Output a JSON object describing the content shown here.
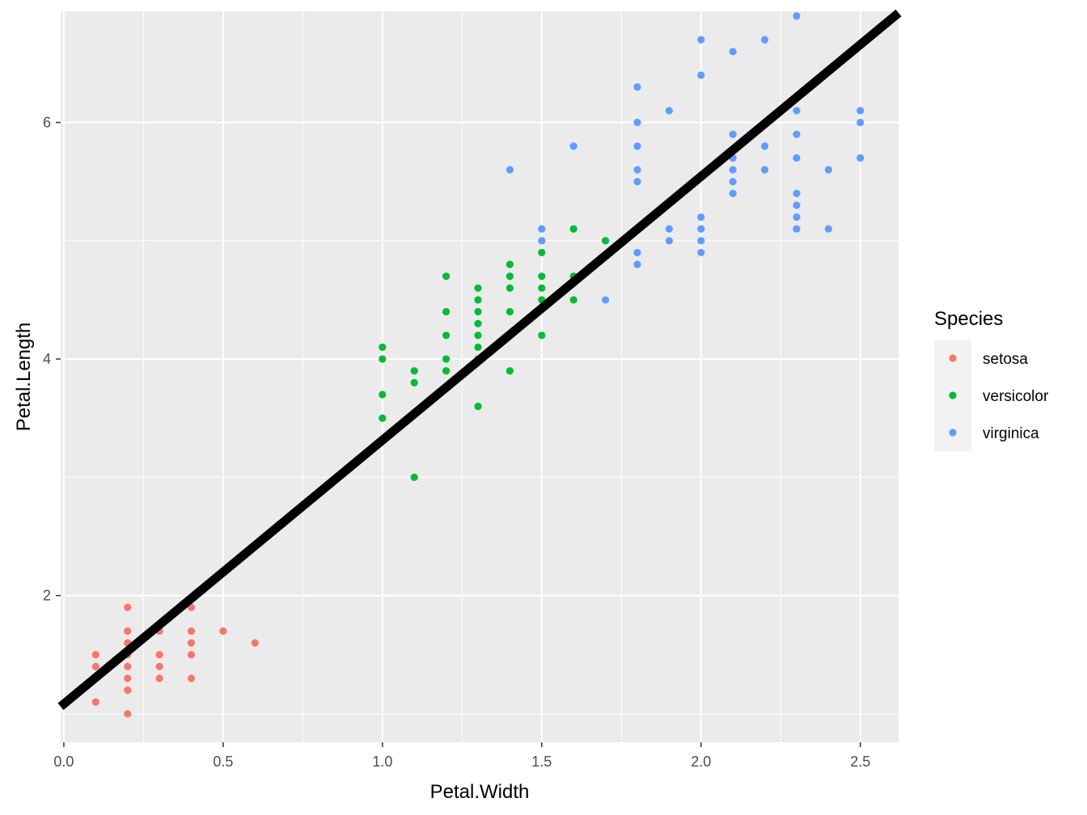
{
  "chart_data": {
    "type": "scatter",
    "xlabel": "Petal.Width",
    "ylabel": "Petal.Length",
    "xlim": [
      -0.01,
      2.62
    ],
    "ylim": [
      0.76,
      6.94
    ],
    "x_ticks": [
      0.0,
      0.5,
      1.0,
      1.5,
      2.0,
      2.5
    ],
    "x_tick_labels": [
      "0.0",
      "0.5",
      "1.0",
      "1.5",
      "2.0",
      "2.5"
    ],
    "y_ticks": [
      2,
      4,
      6
    ],
    "y_tick_labels": [
      "2",
      "4",
      "6"
    ],
    "grid": true,
    "background": "#EBEBEB",
    "legend": {
      "title": "Species",
      "placement": "right",
      "entries": [
        "setosa",
        "versicolor",
        "virginica"
      ]
    },
    "series": [
      {
        "name": "setosa",
        "color": "#F8766D",
        "points": [
          [
            0.1,
            1.1
          ],
          [
            0.1,
            1.4
          ],
          [
            0.1,
            1.5
          ],
          [
            0.2,
            1.0
          ],
          [
            0.2,
            1.2
          ],
          [
            0.2,
            1.3
          ],
          [
            0.2,
            1.4
          ],
          [
            0.2,
            1.5
          ],
          [
            0.2,
            1.6
          ],
          [
            0.2,
            1.7
          ],
          [
            0.2,
            1.9
          ],
          [
            0.3,
            1.3
          ],
          [
            0.3,
            1.4
          ],
          [
            0.3,
            1.5
          ],
          [
            0.3,
            1.7
          ],
          [
            0.4,
            1.3
          ],
          [
            0.4,
            1.5
          ],
          [
            0.4,
            1.6
          ],
          [
            0.4,
            1.7
          ],
          [
            0.4,
            1.9
          ],
          [
            0.5,
            1.7
          ],
          [
            0.6,
            1.6
          ]
        ]
      },
      {
        "name": "versicolor",
        "color": "#00BA38",
        "points": [
          [
            1.0,
            3.5
          ],
          [
            1.0,
            3.7
          ],
          [
            1.0,
            4.0
          ],
          [
            1.0,
            4.1
          ],
          [
            1.1,
            3.0
          ],
          [
            1.1,
            3.8
          ],
          [
            1.1,
            3.9
          ],
          [
            1.2,
            3.9
          ],
          [
            1.2,
            4.0
          ],
          [
            1.2,
            4.2
          ],
          [
            1.2,
            4.4
          ],
          [
            1.2,
            4.7
          ],
          [
            1.3,
            3.6
          ],
          [
            1.3,
            4.0
          ],
          [
            1.3,
            4.1
          ],
          [
            1.3,
            4.2
          ],
          [
            1.3,
            4.3
          ],
          [
            1.3,
            4.4
          ],
          [
            1.3,
            4.5
          ],
          [
            1.3,
            4.6
          ],
          [
            1.4,
            3.9
          ],
          [
            1.4,
            4.4
          ],
          [
            1.4,
            4.6
          ],
          [
            1.4,
            4.7
          ],
          [
            1.4,
            4.8
          ],
          [
            1.5,
            4.2
          ],
          [
            1.5,
            4.5
          ],
          [
            1.5,
            4.6
          ],
          [
            1.5,
            4.7
          ],
          [
            1.5,
            4.9
          ],
          [
            1.6,
            4.5
          ],
          [
            1.6,
            4.7
          ],
          [
            1.6,
            5.1
          ],
          [
            1.7,
            5.0
          ]
        ]
      },
      {
        "name": "virginica",
        "color": "#619CFF",
        "points": [
          [
            1.4,
            5.6
          ],
          [
            1.5,
            5.0
          ],
          [
            1.5,
            5.1
          ],
          [
            1.6,
            5.8
          ],
          [
            1.7,
            4.5
          ],
          [
            1.8,
            4.8
          ],
          [
            1.8,
            4.9
          ],
          [
            1.8,
            5.1
          ],
          [
            1.8,
            5.5
          ],
          [
            1.8,
            5.6
          ],
          [
            1.8,
            5.8
          ],
          [
            1.8,
            6.0
          ],
          [
            1.8,
            6.3
          ],
          [
            1.9,
            5.0
          ],
          [
            1.9,
            5.1
          ],
          [
            1.9,
            6.1
          ],
          [
            2.0,
            4.9
          ],
          [
            2.0,
            5.0
          ],
          [
            2.0,
            5.1
          ],
          [
            2.0,
            5.2
          ],
          [
            2.0,
            6.4
          ],
          [
            2.0,
            6.7
          ],
          [
            2.1,
            5.4
          ],
          [
            2.1,
            5.5
          ],
          [
            2.1,
            5.6
          ],
          [
            2.1,
            5.7
          ],
          [
            2.1,
            5.9
          ],
          [
            2.1,
            6.6
          ],
          [
            2.2,
            5.6
          ],
          [
            2.2,
            5.8
          ],
          [
            2.2,
            6.7
          ],
          [
            2.3,
            5.1
          ],
          [
            2.3,
            5.2
          ],
          [
            2.3,
            5.3
          ],
          [
            2.3,
            5.4
          ],
          [
            2.3,
            5.7
          ],
          [
            2.3,
            5.9
          ],
          [
            2.3,
            6.1
          ],
          [
            2.3,
            6.9
          ],
          [
            2.4,
            5.1
          ],
          [
            2.4,
            5.6
          ],
          [
            2.5,
            5.7
          ],
          [
            2.5,
            6.0
          ],
          [
            2.5,
            6.1
          ]
        ]
      }
    ],
    "fit_line": {
      "intercept": 1.084,
      "slope": 2.23,
      "color": "#000000"
    }
  }
}
